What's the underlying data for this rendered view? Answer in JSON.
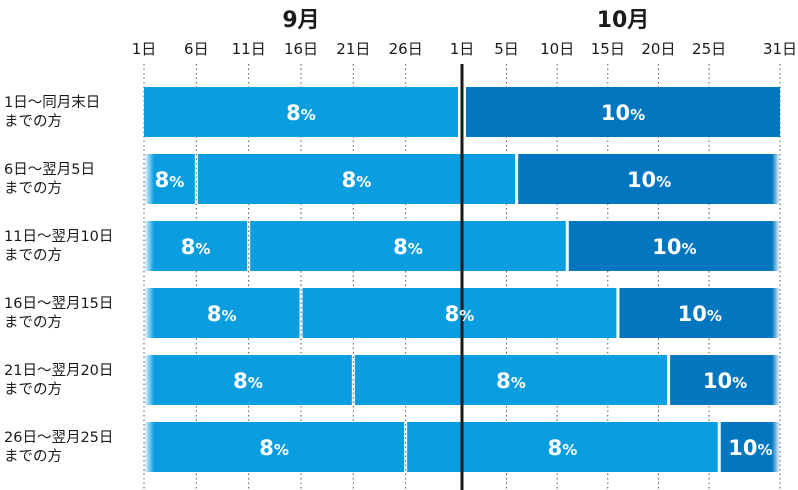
{
  "chart_data": {
    "type": "bar",
    "months": [
      {
        "name": "9月",
        "days": 30
      },
      {
        "name": "10月",
        "days": 31
      }
    ],
    "tick_labels": [
      {
        "month": 0,
        "day": 1,
        "label": "1日"
      },
      {
        "month": 0,
        "day": 6,
        "label": "6日"
      },
      {
        "month": 0,
        "day": 11,
        "label": "11日"
      },
      {
        "month": 0,
        "day": 16,
        "label": "16日"
      },
      {
        "month": 0,
        "day": 21,
        "label": "21日"
      },
      {
        "month": 0,
        "day": 26,
        "label": "26日"
      },
      {
        "month": 1,
        "day": 1,
        "label": "1日"
      },
      {
        "month": 1,
        "day": 5,
        "label": "5日"
      },
      {
        "month": 1,
        "day": 10,
        "label": "10日"
      },
      {
        "month": 1,
        "day": 15,
        "label": "15日"
      },
      {
        "month": 1,
        "day": 20,
        "label": "20日"
      },
      {
        "month": 1,
        "day": 25,
        "label": "25日"
      },
      {
        "month": 1,
        "day": 31,
        "label": "31日"
      }
    ],
    "colors": {
      "rate_8": "#0a9ee0",
      "rate_10": "#0277c0"
    },
    "rows": [
      {
        "label_line1": "1日～同月末日",
        "label_line2": "までの方",
        "segments": [
          {
            "start": "9/1",
            "end": "9/30",
            "rate": 8,
            "label": "8",
            "fade_left": false
          },
          {
            "start": "10/1",
            "end": "10/31",
            "rate": 10,
            "label": "10",
            "fade_left": false
          }
        ]
      },
      {
        "label_line1": "6日～翌月5日",
        "label_line2": "までの方",
        "segments": [
          {
            "start": "9/1",
            "end": "9/5",
            "rate": 8,
            "label": "8",
            "fade_left": true
          },
          {
            "start": "9/6",
            "end": "10/5",
            "rate": 8,
            "label": "8",
            "fade_left": false
          },
          {
            "start": "10/6",
            "end": "10/31",
            "rate": 10,
            "label": "10",
            "fade_left": false
          }
        ]
      },
      {
        "label_line1": "11日～翌月10日",
        "label_line2": "までの方",
        "segments": [
          {
            "start": "9/1",
            "end": "9/10",
            "rate": 8,
            "label": "8",
            "fade_left": true
          },
          {
            "start": "9/11",
            "end": "10/10",
            "rate": 8,
            "label": "8",
            "fade_left": false
          },
          {
            "start": "10/11",
            "end": "10/31",
            "rate": 10,
            "label": "10",
            "fade_left": false
          }
        ]
      },
      {
        "label_line1": "16日～翌月15日",
        "label_line2": "までの方",
        "segments": [
          {
            "start": "9/1",
            "end": "9/15",
            "rate": 8,
            "label": "8",
            "fade_left": true
          },
          {
            "start": "9/16",
            "end": "10/15",
            "rate": 8,
            "label": "8",
            "fade_left": false
          },
          {
            "start": "10/16",
            "end": "10/31",
            "rate": 10,
            "label": "10",
            "fade_left": false
          }
        ]
      },
      {
        "label_line1": "21日～翌月20日",
        "label_line2": "までの方",
        "segments": [
          {
            "start": "9/1",
            "end": "9/20",
            "rate": 8,
            "label": "8",
            "fade_left": true
          },
          {
            "start": "9/21",
            "end": "10/20",
            "rate": 8,
            "label": "8",
            "fade_left": false
          },
          {
            "start": "10/21",
            "end": "10/31",
            "rate": 10,
            "label": "10",
            "fade_left": false
          }
        ]
      },
      {
        "label_line1": "26日～翌月25日",
        "label_line2": "までの方",
        "segments": [
          {
            "start": "9/1",
            "end": "9/25",
            "rate": 8,
            "label": "8",
            "fade_left": true
          },
          {
            "start": "9/26",
            "end": "10/25",
            "rate": 8,
            "label": "8",
            "fade_left": false
          },
          {
            "start": "10/26",
            "end": "10/31",
            "rate": 10,
            "label": "10",
            "fade_left": false
          }
        ]
      }
    ],
    "pct_symbol": "%",
    "grid": true,
    "divider_between_months": true
  }
}
